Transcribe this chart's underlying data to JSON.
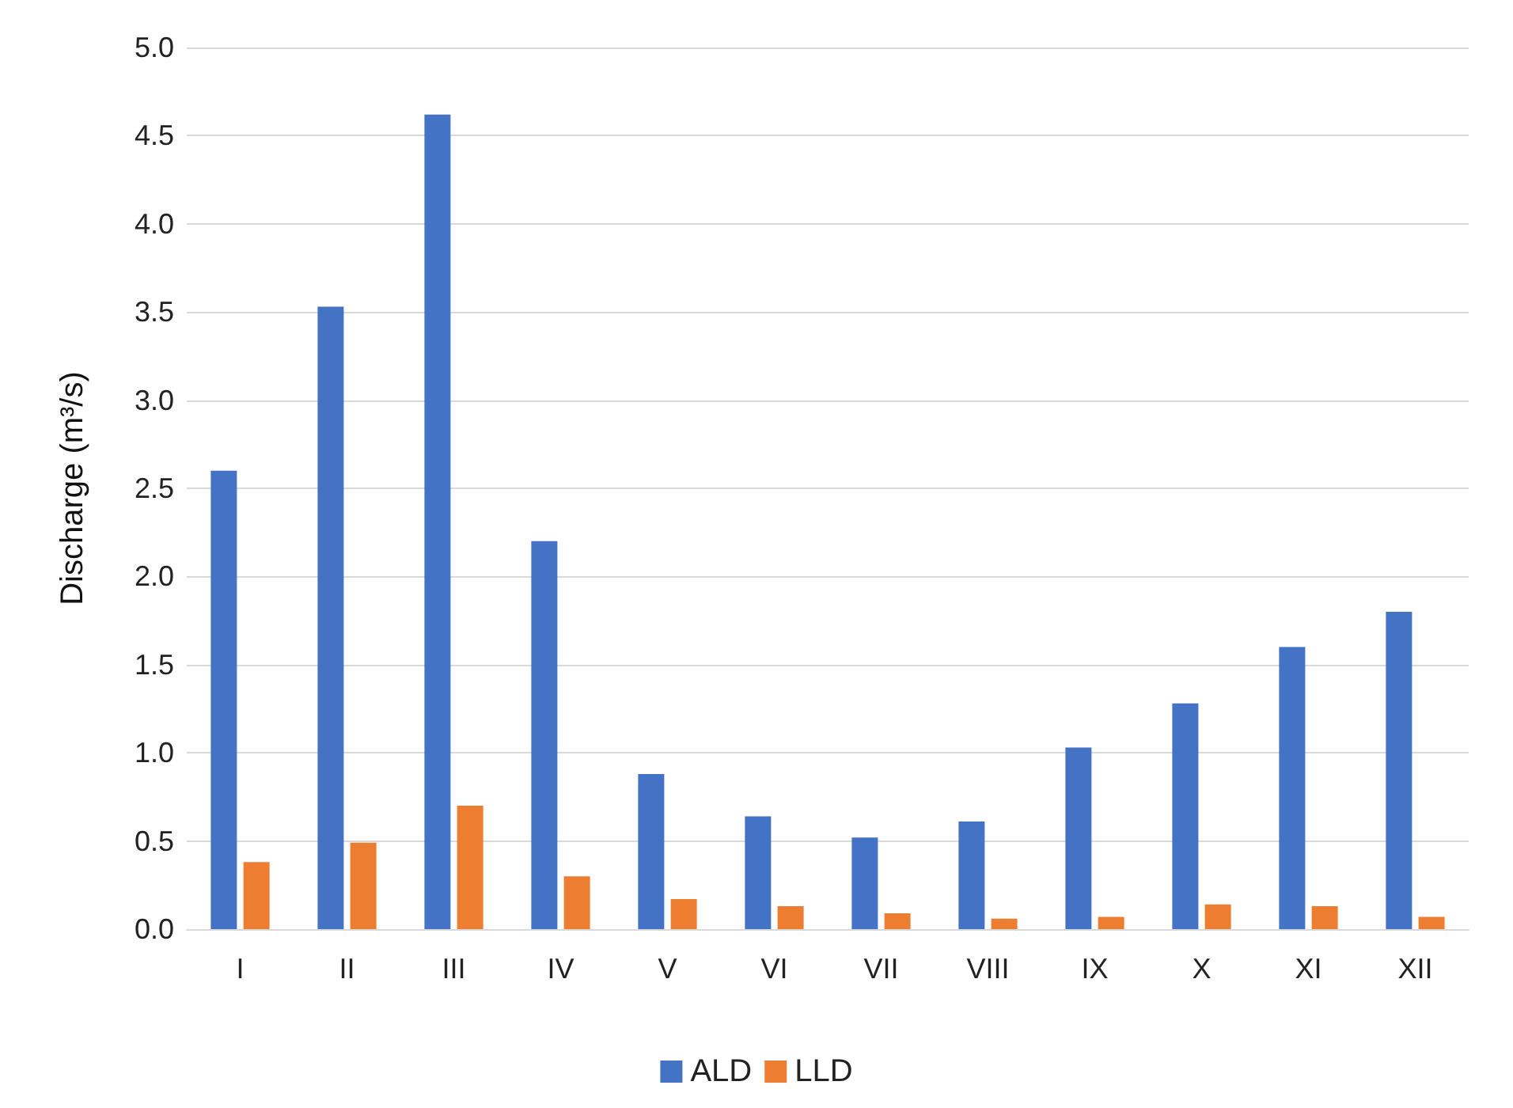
{
  "chart_data": {
    "type": "bar",
    "ylabel": "Discharge (m³/s)",
    "categories": [
      "I",
      "II",
      "III",
      "IV",
      "V",
      "VI",
      "VII",
      "VIII",
      "IX",
      "X",
      "XI",
      "XII"
    ],
    "series": [
      {
        "name": "ALD",
        "color": "#4472c4",
        "values": [
          2.6,
          3.53,
          4.62,
          2.2,
          0.88,
          0.64,
          0.52,
          0.61,
          1.03,
          1.28,
          1.6,
          1.8
        ]
      },
      {
        "name": "LLD",
        "color": "#ed7d31",
        "values": [
          0.38,
          0.49,
          0.7,
          0.3,
          0.17,
          0.13,
          0.09,
          0.06,
          0.07,
          0.14,
          0.13,
          0.07
        ]
      }
    ],
    "ylim": [
      0,
      5
    ],
    "yticks": [
      {
        "value": 0,
        "label": "0.0"
      },
      0.5,
      {
        "value": 1,
        "label": "1.0"
      },
      1.5,
      {
        "value": 2,
        "label": "2.0"
      },
      2.5,
      {
        "value": 3,
        "label": "3.0"
      },
      3.5,
      {
        "value": 4,
        "label": "4.0"
      },
      4.5,
      {
        "value": 5,
        "label": "5.0"
      }
    ],
    "grid": "y",
    "legend": "bottom"
  }
}
